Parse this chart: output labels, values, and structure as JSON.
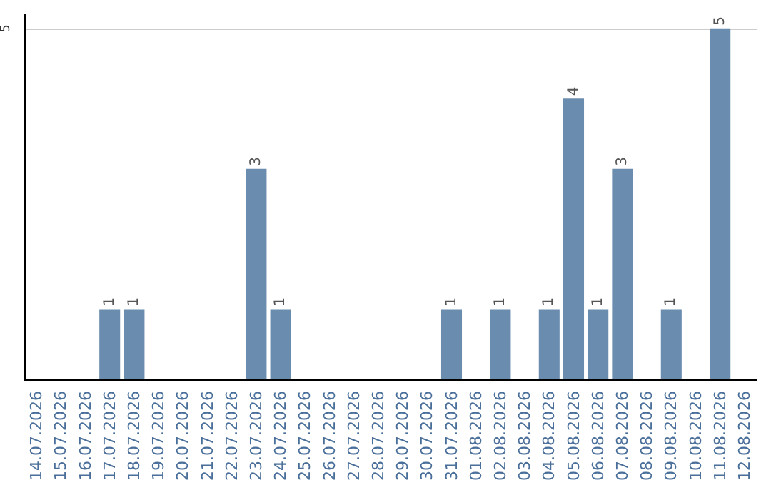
{
  "chart_data": {
    "type": "bar",
    "categories": [
      "14.07.2026",
      "15.07.2026",
      "16.07.2026",
      "17.07.2026",
      "18.07.2026",
      "19.07.2026",
      "20.07.2026",
      "21.07.2026",
      "22.07.2026",
      "23.07.2026",
      "24.07.2026",
      "25.07.2026",
      "26.07.2026",
      "27.07.2026",
      "28.07.2026",
      "29.07.2026",
      "30.07.2026",
      "31.07.2026",
      "01.08.2026",
      "02.08.2026",
      "03.08.2026",
      "04.08.2026",
      "05.08.2026",
      "06.08.2026",
      "07.08.2026",
      "08.08.2026",
      "09.08.2026",
      "10.08.2026",
      "11.08.2026",
      "12.08.2026"
    ],
    "values": [
      0,
      0,
      0,
      1,
      1,
      0,
      0,
      0,
      0,
      3,
      1,
      0,
      0,
      0,
      0,
      0,
      0,
      1,
      0,
      1,
      0,
      1,
      4,
      1,
      3,
      0,
      1,
      0,
      5,
      0
    ],
    "value_labels": [
      null,
      null,
      null,
      "1",
      "1",
      null,
      null,
      null,
      null,
      "3",
      "1",
      null,
      null,
      null,
      null,
      null,
      null,
      "1",
      null,
      "1",
      null,
      "1",
      "4",
      "1",
      "3",
      null,
      "1",
      null,
      "5",
      null
    ],
    "color": "#6a8caf",
    "ylim": [
      0,
      5.2
    ],
    "yticks": [
      5
    ],
    "grid": "y"
  }
}
